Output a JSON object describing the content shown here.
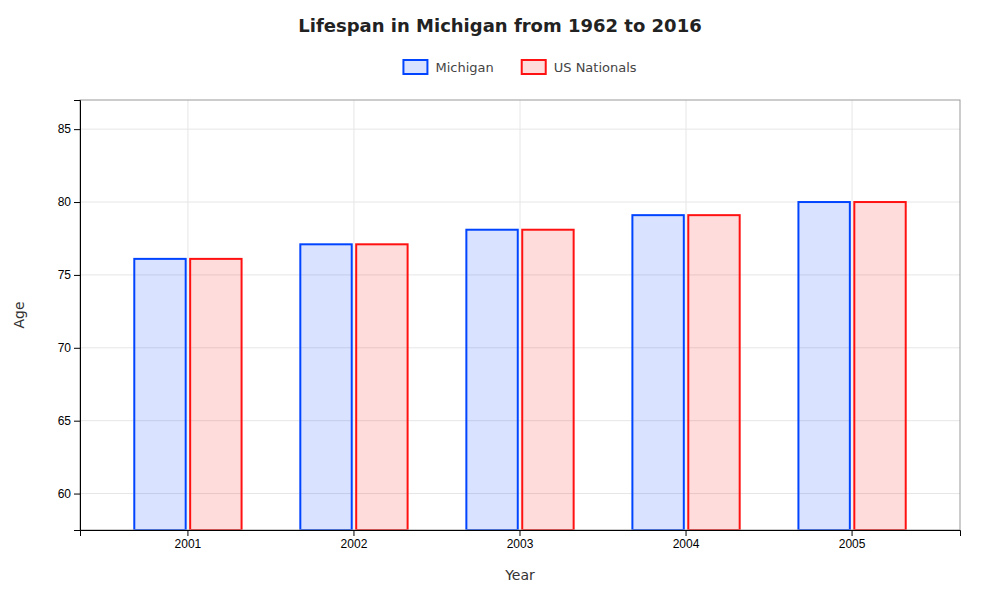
{
  "chart_data": {
    "type": "bar",
    "title": "Lifespan in Michigan from 1962 to 2016",
    "xlabel": "Year",
    "ylabel": "Age",
    "categories": [
      "2001",
      "2002",
      "2003",
      "2004",
      "2005"
    ],
    "series": [
      {
        "name": "Michigan",
        "color": "#0044ff",
        "values": [
          76.1,
          77.1,
          78.1,
          79.1,
          80.0
        ]
      },
      {
        "name": "US Nationals",
        "color": "#ff1111",
        "values": [
          76.1,
          77.1,
          78.1,
          79.1,
          80.0
        ]
      }
    ],
    "ylim": [
      57.5,
      87
    ],
    "yticks": [
      60,
      65,
      70,
      75,
      80,
      85
    ],
    "grid": true,
    "legend": "top"
  }
}
